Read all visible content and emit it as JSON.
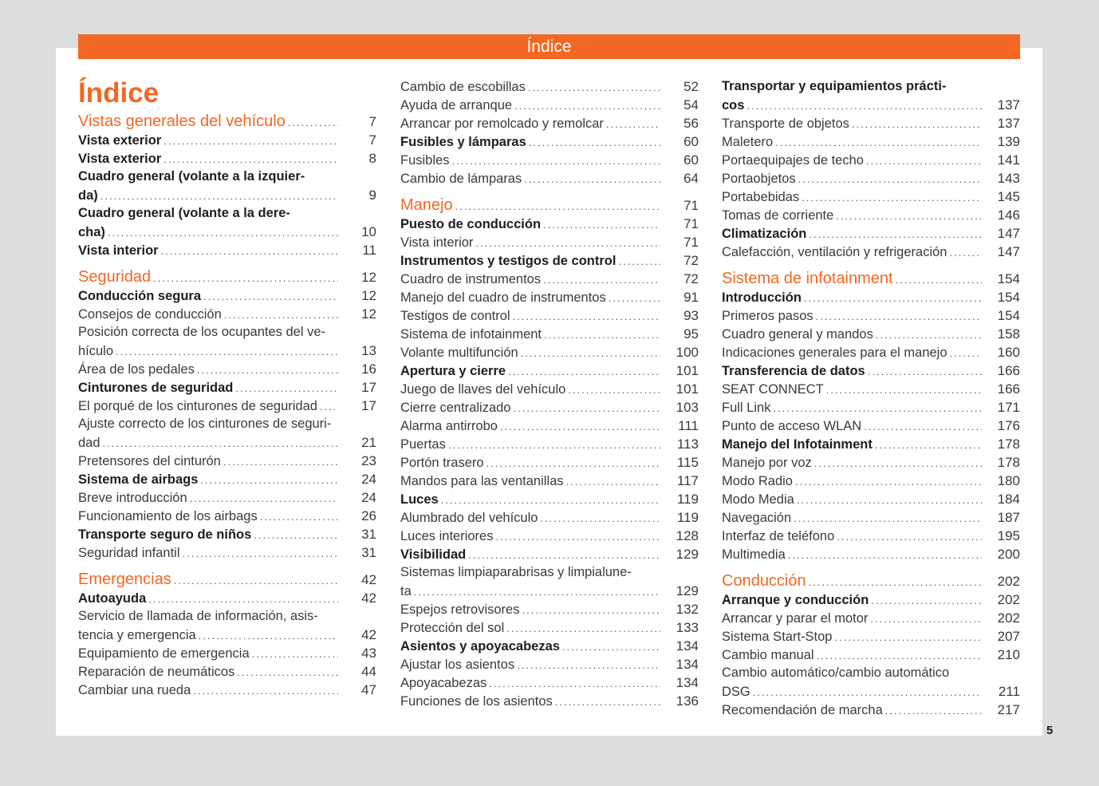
{
  "header": {
    "title": "Índice"
  },
  "page_title": "Índice",
  "page_number": "5",
  "colors": {
    "accent": "#f26722",
    "background": "#dcdddf"
  },
  "columns": [
    [
      {
        "t": "s",
        "l": [
          "Vistas generales del vehículo"
        ],
        "p": "7"
      },
      {
        "t": "b",
        "l": [
          "Vista exterior"
        ],
        "p": "7"
      },
      {
        "t": "b",
        "l": [
          "Vista exterior"
        ],
        "p": "8"
      },
      {
        "t": "b",
        "l": [
          "Cuadro general (volante a la izquier-",
          "da)"
        ],
        "p": "9"
      },
      {
        "t": "b",
        "l": [
          "Cuadro general (volante a la dere-",
          "cha)"
        ],
        "p": "10"
      },
      {
        "t": "b",
        "l": [
          "Vista interior"
        ],
        "p": "11"
      },
      {
        "t": "s",
        "l": [
          "Seguridad"
        ],
        "p": "12"
      },
      {
        "t": "b",
        "l": [
          "Conducción segura"
        ],
        "p": "12"
      },
      {
        "t": "n",
        "l": [
          "Consejos de conducción"
        ],
        "p": "12"
      },
      {
        "t": "n",
        "l": [
          "Posición correcta de los ocupantes del ve-",
          "hículo"
        ],
        "p": "13"
      },
      {
        "t": "n",
        "l": [
          "Área de los pedales"
        ],
        "p": "16"
      },
      {
        "t": "b",
        "l": [
          "Cinturones de seguridad"
        ],
        "p": "17"
      },
      {
        "t": "n",
        "l": [
          "El porqué de los cinturones de seguridad"
        ],
        "p": "17"
      },
      {
        "t": "n",
        "l": [
          "Ajuste correcto de los cinturones de seguri-",
          "dad"
        ],
        "p": "21"
      },
      {
        "t": "n",
        "l": [
          "Pretensores del cinturón"
        ],
        "p": "23"
      },
      {
        "t": "b",
        "l": [
          "Sistema de airbags"
        ],
        "p": "24"
      },
      {
        "t": "n",
        "l": [
          "Breve introducción"
        ],
        "p": "24"
      },
      {
        "t": "n",
        "l": [
          "Funcionamiento de los airbags"
        ],
        "p": "26"
      },
      {
        "t": "b",
        "l": [
          "Transporte seguro de niños"
        ],
        "p": "31"
      },
      {
        "t": "n",
        "l": [
          "Seguridad infantil"
        ],
        "p": "31"
      },
      {
        "t": "s",
        "l": [
          "Emergencias"
        ],
        "p": "42"
      },
      {
        "t": "b",
        "l": [
          "Autoayuda"
        ],
        "p": "42"
      },
      {
        "t": "n",
        "l": [
          "Servicio de llamada de información, asis-",
          "tencia y emergencia"
        ],
        "p": "42"
      },
      {
        "t": "n",
        "l": [
          "Equipamiento de emergencia"
        ],
        "p": "43"
      },
      {
        "t": "n",
        "l": [
          "Reparación de neumáticos"
        ],
        "p": "44"
      },
      {
        "t": "n",
        "l": [
          "Cambiar una rueda"
        ],
        "p": "47"
      }
    ],
    [
      {
        "t": "n",
        "l": [
          "Cambio de escobillas"
        ],
        "p": "52"
      },
      {
        "t": "n",
        "l": [
          "Ayuda de arranque"
        ],
        "p": "54"
      },
      {
        "t": "n",
        "l": [
          "Arrancar por remolcado y remolcar"
        ],
        "p": "56"
      },
      {
        "t": "b",
        "l": [
          "Fusibles y lámparas"
        ],
        "p": "60"
      },
      {
        "t": "n",
        "l": [
          "Fusibles"
        ],
        "p": "60"
      },
      {
        "t": "n",
        "l": [
          "Cambio de lámparas"
        ],
        "p": "64"
      },
      {
        "t": "s",
        "l": [
          "Manejo"
        ],
        "p": "71"
      },
      {
        "t": "b",
        "l": [
          "Puesto de conducción"
        ],
        "p": "71"
      },
      {
        "t": "n",
        "l": [
          "Vista interior"
        ],
        "p": "71"
      },
      {
        "t": "b",
        "l": [
          "Instrumentos y testigos de control"
        ],
        "p": "72"
      },
      {
        "t": "n",
        "l": [
          "Cuadro de instrumentos"
        ],
        "p": "72"
      },
      {
        "t": "n",
        "l": [
          "Manejo del cuadro de instrumentos"
        ],
        "p": "91"
      },
      {
        "t": "n",
        "l": [
          "Testigos de control"
        ],
        "p": "93"
      },
      {
        "t": "n",
        "l": [
          "Sistema de infotainment"
        ],
        "p": "95"
      },
      {
        "t": "n",
        "l": [
          "Volante multifunción"
        ],
        "p": "100"
      },
      {
        "t": "b",
        "l": [
          "Apertura y cierre"
        ],
        "p": "101"
      },
      {
        "t": "n",
        "l": [
          "Juego de llaves del vehículo"
        ],
        "p": "101"
      },
      {
        "t": "n",
        "l": [
          "Cierre centralizado"
        ],
        "p": "103"
      },
      {
        "t": "n",
        "l": [
          "Alarma antirrobo"
        ],
        "p": "111"
      },
      {
        "t": "n",
        "l": [
          "Puertas"
        ],
        "p": "113"
      },
      {
        "t": "n",
        "l": [
          "Portón trasero"
        ],
        "p": "115"
      },
      {
        "t": "n",
        "l": [
          "Mandos para las ventanillas"
        ],
        "p": "117"
      },
      {
        "t": "b",
        "l": [
          "Luces"
        ],
        "p": "119"
      },
      {
        "t": "n",
        "l": [
          "Alumbrado del vehículo"
        ],
        "p": "119"
      },
      {
        "t": "n",
        "l": [
          "Luces interiores"
        ],
        "p": "128"
      },
      {
        "t": "b",
        "l": [
          "Visibilidad"
        ],
        "p": "129"
      },
      {
        "t": "n",
        "l": [
          "Sistemas limpiaparabrisas y limpialune-",
          "ta"
        ],
        "p": "129"
      },
      {
        "t": "n",
        "l": [
          "Espejos retrovisores"
        ],
        "p": "132"
      },
      {
        "t": "n",
        "l": [
          "Protección del sol"
        ],
        "p": "133"
      },
      {
        "t": "b",
        "l": [
          "Asientos y apoyacabezas"
        ],
        "p": "134"
      },
      {
        "t": "n",
        "l": [
          "Ajustar los asientos"
        ],
        "p": "134"
      },
      {
        "t": "n",
        "l": [
          "Apoyacabezas"
        ],
        "p": "134"
      },
      {
        "t": "n",
        "l": [
          "Funciones de los asientos"
        ],
        "p": "136"
      }
    ],
    [
      {
        "t": "b",
        "l": [
          "Transportar y equipamientos prácti-",
          "cos"
        ],
        "p": "137"
      },
      {
        "t": "n",
        "l": [
          "Transporte de objetos"
        ],
        "p": "137"
      },
      {
        "t": "n",
        "l": [
          "Maletero"
        ],
        "p": "139"
      },
      {
        "t": "n",
        "l": [
          "Portaequipajes de techo"
        ],
        "p": "141"
      },
      {
        "t": "n",
        "l": [
          "Portaobjetos"
        ],
        "p": "143"
      },
      {
        "t": "n",
        "l": [
          "Portabebidas"
        ],
        "p": "145"
      },
      {
        "t": "n",
        "l": [
          "Tomas de corriente"
        ],
        "p": "146"
      },
      {
        "t": "b",
        "l": [
          "Climatización"
        ],
        "p": "147"
      },
      {
        "t": "n",
        "l": [
          "Calefacción, ventilación y refrigeración"
        ],
        "p": "147"
      },
      {
        "t": "s",
        "l": [
          "Sistema de infotainment"
        ],
        "p": "154"
      },
      {
        "t": "b",
        "l": [
          "Introducción"
        ],
        "p": "154"
      },
      {
        "t": "n",
        "l": [
          "Primeros pasos"
        ],
        "p": "154"
      },
      {
        "t": "n",
        "l": [
          "Cuadro general y mandos"
        ],
        "p": "158"
      },
      {
        "t": "n",
        "l": [
          "Indicaciones generales para el manejo"
        ],
        "p": "160"
      },
      {
        "t": "b",
        "l": [
          "Transferencia de datos"
        ],
        "p": "166"
      },
      {
        "t": "n",
        "l": [
          "SEAT CONNECT"
        ],
        "p": "166"
      },
      {
        "t": "n",
        "l": [
          "Full Link"
        ],
        "p": "171"
      },
      {
        "t": "n",
        "l": [
          "Punto de acceso WLAN"
        ],
        "p": "176"
      },
      {
        "t": "b",
        "l": [
          "Manejo del Infotainment"
        ],
        "p": "178"
      },
      {
        "t": "n",
        "l": [
          "Manejo por voz"
        ],
        "p": "178"
      },
      {
        "t": "n",
        "l": [
          "Modo Radio"
        ],
        "p": "180"
      },
      {
        "t": "n",
        "l": [
          "Modo Media"
        ],
        "p": "184"
      },
      {
        "t": "n",
        "l": [
          "Navegación"
        ],
        "p": "187"
      },
      {
        "t": "n",
        "l": [
          "Interfaz de teléfono"
        ],
        "p": "195"
      },
      {
        "t": "n",
        "l": [
          "Multimedia"
        ],
        "p": "200"
      },
      {
        "t": "s",
        "l": [
          "Conducción"
        ],
        "p": "202"
      },
      {
        "t": "b",
        "l": [
          "Arranque y conducción"
        ],
        "p": "202"
      },
      {
        "t": "n",
        "l": [
          "Arrancar y parar el motor"
        ],
        "p": "202"
      },
      {
        "t": "n",
        "l": [
          "Sistema Start-Stop"
        ],
        "p": "207"
      },
      {
        "t": "n",
        "l": [
          "Cambio manual"
        ],
        "p": "210"
      },
      {
        "t": "n",
        "l": [
          "Cambio automático/cambio automático",
          "DSG"
        ],
        "p": "211"
      },
      {
        "t": "n",
        "l": [
          "Recomendación de marcha"
        ],
        "p": "217"
      }
    ]
  ]
}
